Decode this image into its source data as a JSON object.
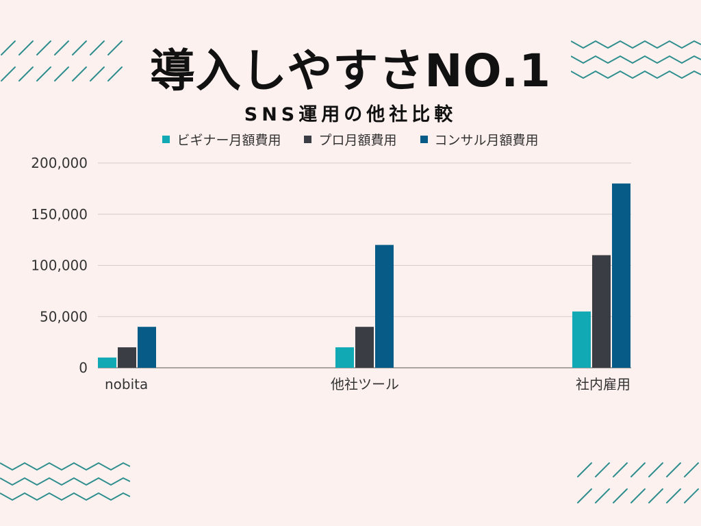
{
  "headline": "導入しやすさNO.1",
  "chart_data": {
    "type": "bar",
    "title": "SNS運用の他社比較",
    "categories": [
      "nobita",
      "他社ツール",
      "社内雇用"
    ],
    "series": [
      {
        "name": "ビギナー月額費用",
        "color": "#11a9b4",
        "values": [
          10000,
          20000,
          55000
        ]
      },
      {
        "name": "プロ月額費用",
        "color": "#3b3d44",
        "values": [
          20000,
          40000,
          110000
        ]
      },
      {
        "name": "コンサル月額費用",
        "color": "#075b87",
        "values": [
          40000,
          120000,
          180000
        ]
      }
    ],
    "ylim": [
      0,
      200000
    ],
    "yticks": [
      0,
      50000,
      100000,
      150000,
      200000
    ],
    "ytick_labels": [
      "0",
      "50,000",
      "100,000",
      "150,000",
      "200,000"
    ],
    "grid": true,
    "legend_position": "top"
  },
  "decor": {
    "accent": "#2e8f8e"
  }
}
